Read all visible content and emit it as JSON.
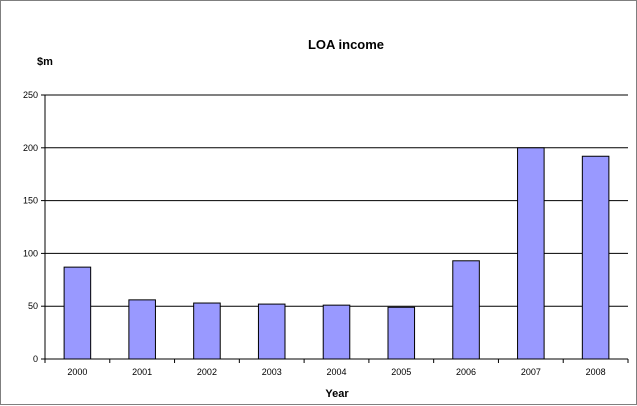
{
  "chart_data": {
    "type": "bar",
    "title": "LOA income",
    "ylabel": "$m",
    "xlabel": "Year",
    "categories": [
      "2000",
      "2001",
      "2002",
      "2003",
      "2004",
      "2005",
      "2006",
      "2007",
      "2008"
    ],
    "values": [
      87,
      56,
      53,
      52,
      51,
      49,
      93,
      200,
      192
    ],
    "ylim": [
      0,
      250
    ],
    "yticks": [
      0,
      50,
      100,
      150,
      200,
      250
    ],
    "grid": true,
    "legend": "none",
    "colors": {
      "bar_fill": "#9999ff",
      "bar_stroke": "#000000",
      "grid": "#000000"
    }
  }
}
